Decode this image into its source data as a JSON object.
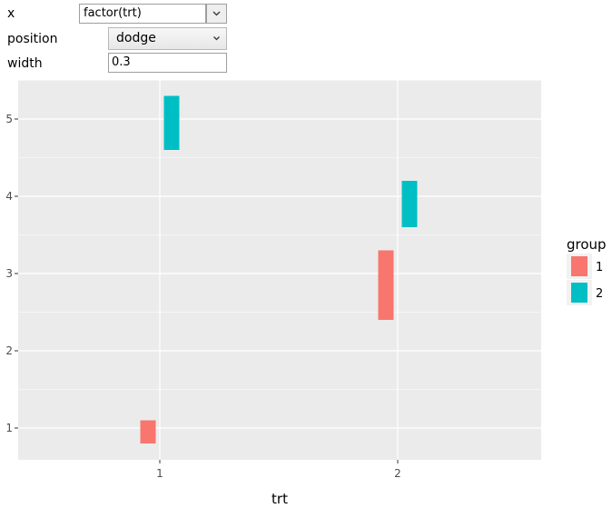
{
  "controls": {
    "x": {
      "label": "x",
      "value": "factor(trt)"
    },
    "position": {
      "label": "position",
      "value": "dodge"
    },
    "width": {
      "label": "width",
      "value": "0.3"
    }
  },
  "chart_data": {
    "type": "bar",
    "subtype": "dodged-range (geom_linerange-style rectangles)",
    "xlabel": "trt",
    "ylabel": "",
    "x_categories": [
      "1",
      "2"
    ],
    "y_ticks": [
      1,
      2,
      3,
      4,
      5
    ],
    "ylim": [
      0.6,
      5.5
    ],
    "grid": true,
    "panel_background": "#ebebeb",
    "legend": {
      "title": "group",
      "placement": "right",
      "entries": [
        "1",
        "2"
      ]
    },
    "dodge_width": 0.3,
    "series": [
      {
        "name": "1",
        "color": "#f8766d",
        "ranges": [
          {
            "x": "1",
            "ymin": 0.8,
            "ymax": 1.1
          },
          {
            "x": "2",
            "ymin": 2.4,
            "ymax": 3.3
          }
        ]
      },
      {
        "name": "2",
        "color": "#00bfc4",
        "ranges": [
          {
            "x": "1",
            "ymin": 4.6,
            "ymax": 5.3
          },
          {
            "x": "2",
            "ymin": 3.6,
            "ymax": 4.2
          }
        ]
      }
    ]
  }
}
